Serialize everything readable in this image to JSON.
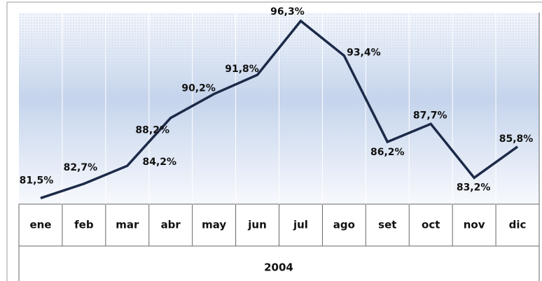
{
  "chart_data": {
    "type": "line",
    "xlabel": "2004",
    "categories": [
      "ene",
      "feb",
      "mar",
      "abr",
      "may",
      "jun",
      "jul",
      "ago",
      "set",
      "oct",
      "nov",
      "dic"
    ],
    "series": [
      {
        "color": "#1c2a48",
        "values": [
          81.5,
          82.7,
          84.2,
          88.2,
          90.2,
          91.8,
          96.3,
          93.4,
          86.2,
          87.7,
          83.2,
          85.8
        ],
        "value_labels": [
          "81,5%",
          "82,7%",
          "84,2%",
          "88,2%",
          "90,2%",
          "91,8%",
          "96,3%",
          "93,4%",
          "86,2%",
          "87,7%",
          "83,2%",
          "85,8%"
        ]
      }
    ],
    "ylim": [
      81,
      97
    ]
  }
}
